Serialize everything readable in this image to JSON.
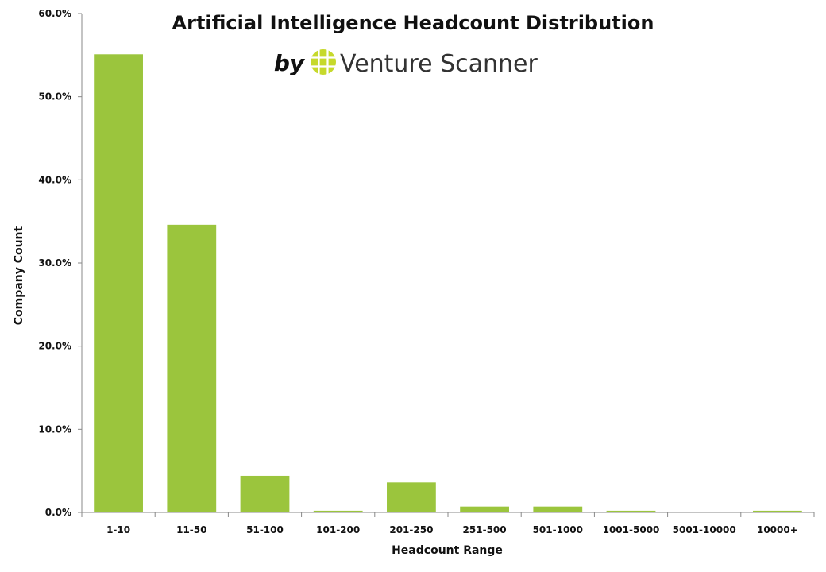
{
  "chart_data": {
    "type": "bar",
    "title": "Artificial Intelligence Headcount Distribution",
    "subtitle_prefix": "by",
    "brand_name": "Venture Scanner",
    "xlabel": "Headcount Range",
    "ylabel": "Company Count",
    "categories": [
      "1-10",
      "11-50",
      "51-100",
      "101-200",
      "201-250",
      "251-500",
      "501-1000",
      "1001-5000",
      "5001-10000",
      "10000+"
    ],
    "values": [
      55.1,
      34.6,
      4.4,
      0.2,
      3.6,
      0.7,
      0.7,
      0.2,
      0.0,
      0.2
    ],
    "ylim": [
      0,
      60
    ],
    "yticks": [
      "0.0%",
      "10.0%",
      "20.0%",
      "30.0%",
      "40.0%",
      "50.0%",
      "60.0%"
    ],
    "bar_color": "#9bc53d",
    "logo_color": "#c6d92b",
    "grid": false
  }
}
